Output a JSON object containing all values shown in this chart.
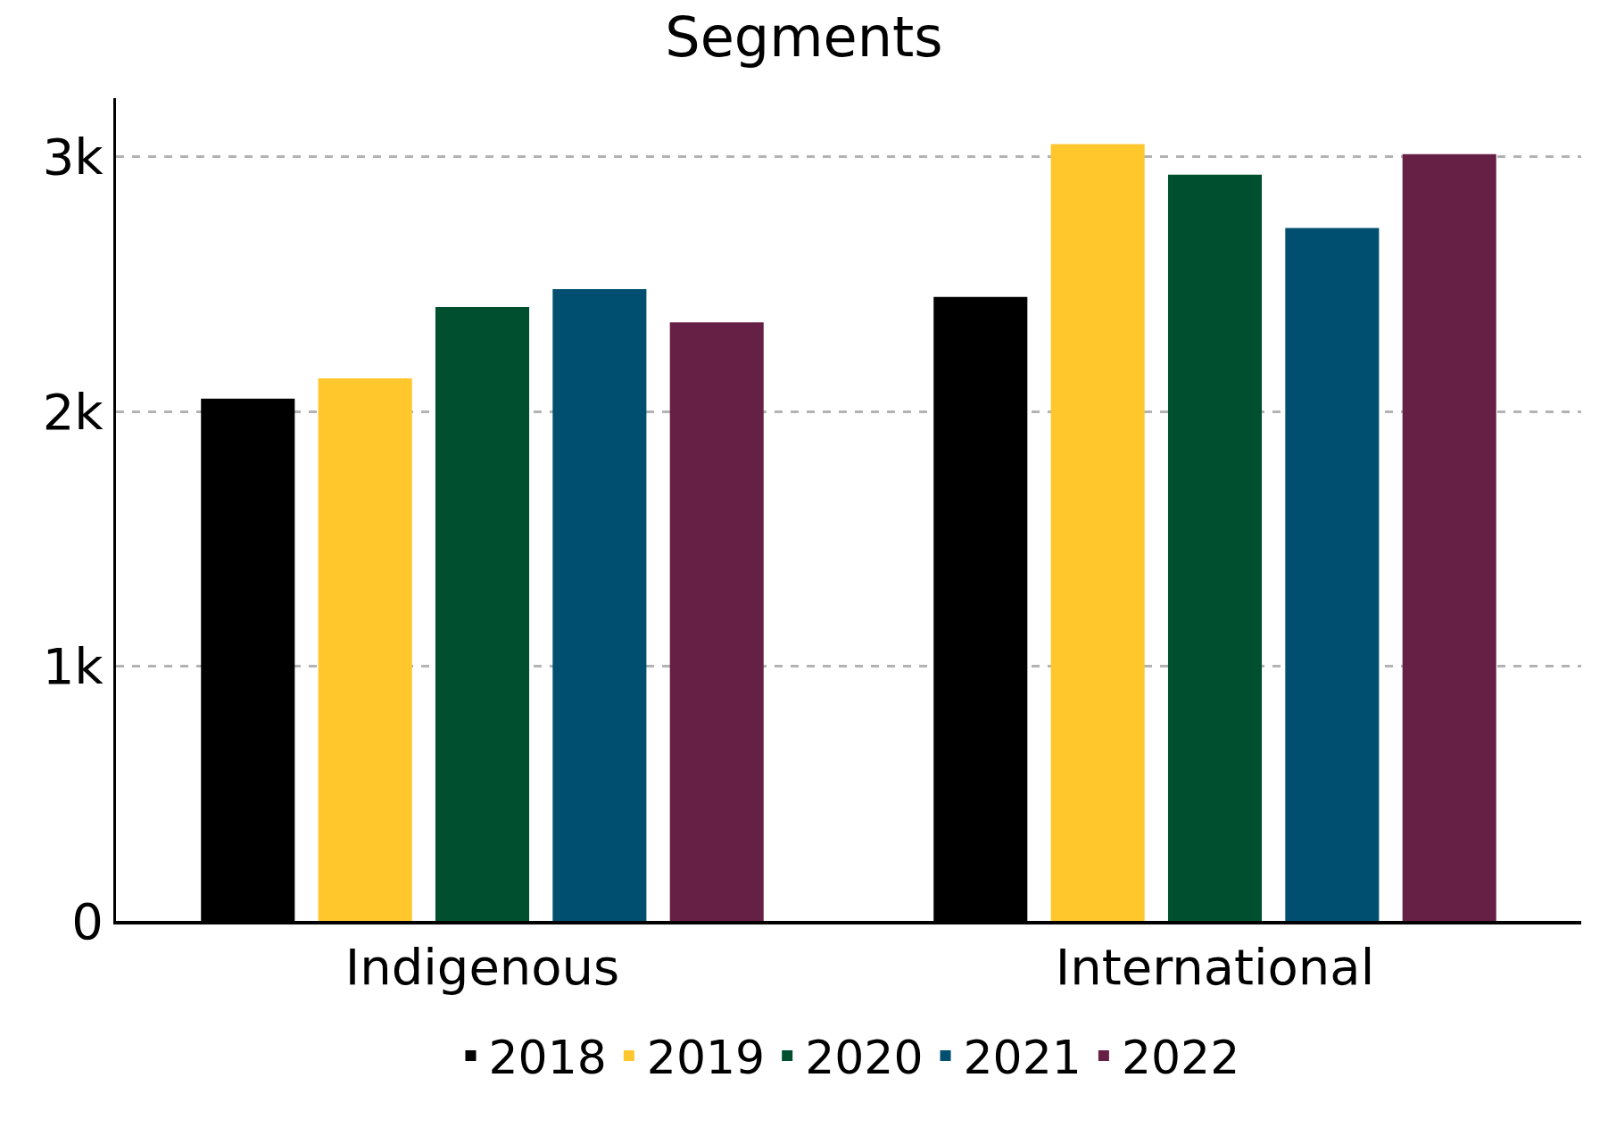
{
  "chart_data": {
    "type": "bar",
    "title": "Segments",
    "categories": [
      "Indigenous",
      "International"
    ],
    "series": [
      {
        "name": "2018",
        "color": "#000000",
        "values": [
          2050,
          2450
        ]
      },
      {
        "name": "2019",
        "color": "#ffc72c",
        "values": [
          2130,
          3050
        ]
      },
      {
        "name": "2020",
        "color": "#00502f",
        "values": [
          2410,
          2930
        ]
      },
      {
        "name": "2021",
        "color": "#004f71",
        "values": [
          2480,
          2720
        ]
      },
      {
        "name": "2022",
        "color": "#662046",
        "values": [
          2350,
          3010
        ]
      }
    ],
    "ylim": [
      0,
      3230
    ],
    "yticks": [
      0,
      {
        "value": 1000,
        "label": "1k"
      },
      {
        "value": 2000,
        "label": "2k"
      },
      {
        "value": 3000,
        "label": "3k"
      }
    ],
    "grid": "y",
    "legend": "bottom"
  }
}
